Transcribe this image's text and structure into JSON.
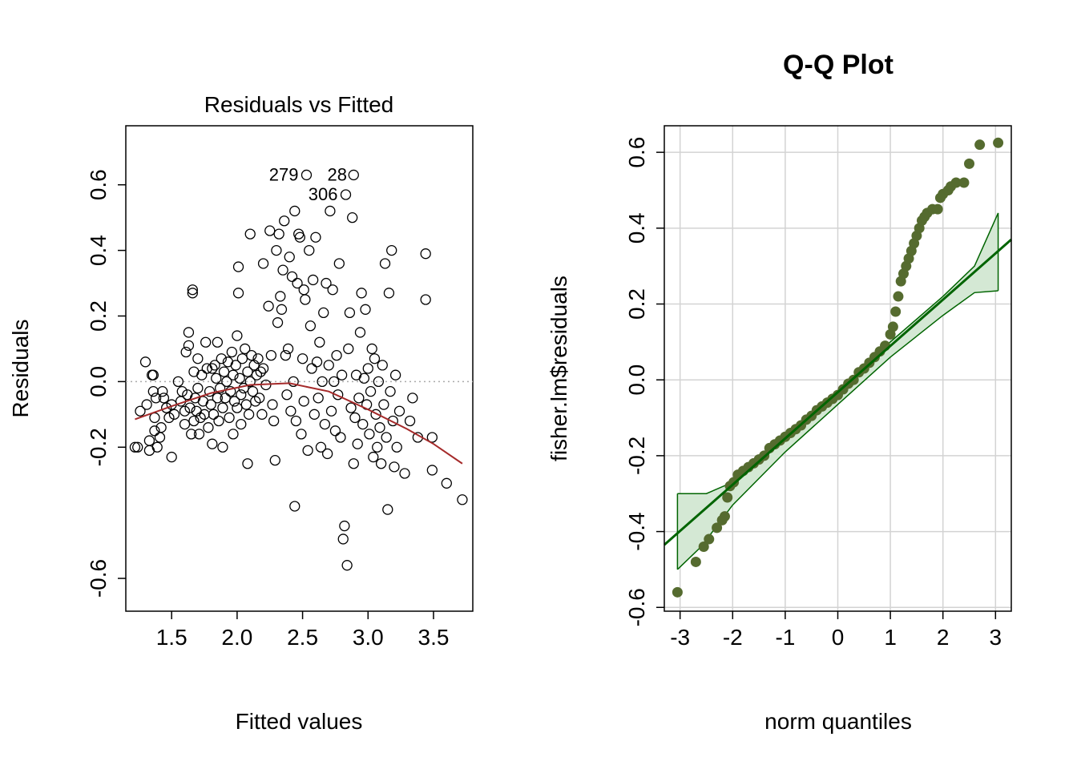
{
  "chart_data": [
    {
      "type": "scatter",
      "title": "Residuals vs Fitted",
      "xlabel": "Fitted values",
      "ylabel": "Residuals",
      "xlim": [
        1.15,
        3.8
      ],
      "ylim": [
        -0.7,
        0.78
      ],
      "xticks": [
        1.5,
        2.0,
        2.5,
        3.0,
        3.5
      ],
      "xtick_labels": [
        "1.5",
        "2.0",
        "2.5",
        "3.0",
        "3.5"
      ],
      "yticks": [
        -0.6,
        -0.2,
        0.0,
        0.2,
        0.4,
        0.6
      ],
      "ytick_labels": [
        "-0.6",
        "-0.2",
        "0.0",
        "0.2",
        "0.4",
        "0.6"
      ],
      "reference_line_y": 0.0,
      "point_labels": [
        {
          "text": "279",
          "x": 2.53,
          "y": 0.63
        },
        {
          "text": "28",
          "x": 2.9,
          "y": 0.63
        },
        {
          "text": "306",
          "x": 2.83,
          "y": 0.57
        }
      ],
      "smooth_color": "#a52a2a",
      "smooth_line": [
        [
          1.22,
          -0.115
        ],
        [
          1.5,
          -0.075
        ],
        [
          1.8,
          -0.035
        ],
        [
          2.1,
          -0.01
        ],
        [
          2.4,
          -0.005
        ],
        [
          2.7,
          -0.03
        ],
        [
          3.0,
          -0.085
        ],
        [
          3.3,
          -0.145
        ],
        [
          3.5,
          -0.19
        ],
        [
          3.72,
          -0.25
        ]
      ],
      "points": [
        [
          1.22,
          -0.2
        ],
        [
          1.24,
          -0.2
        ],
        [
          1.26,
          -0.09
        ],
        [
          1.3,
          0.06
        ],
        [
          1.31,
          -0.07
        ],
        [
          1.33,
          -0.18
        ],
        [
          1.33,
          -0.21
        ],
        [
          1.35,
          0.02
        ],
        [
          1.36,
          0.02
        ],
        [
          1.36,
          -0.03
        ],
        [
          1.37,
          -0.11
        ],
        [
          1.37,
          -0.15
        ],
        [
          1.38,
          -0.05
        ],
        [
          1.39,
          -0.2
        ],
        [
          1.41,
          -0.17
        ],
        [
          1.42,
          -0.14
        ],
        [
          1.43,
          -0.03
        ],
        [
          1.44,
          -0.05
        ],
        [
          1.46,
          -0.08
        ],
        [
          1.48,
          -0.11
        ],
        [
          1.5,
          -0.23
        ],
        [
          1.5,
          -0.07
        ],
        [
          1.52,
          -0.1
        ],
        [
          1.55,
          0.0
        ],
        [
          1.57,
          -0.06
        ],
        [
          1.58,
          -0.03
        ],
        [
          1.6,
          -0.09
        ],
        [
          1.6,
          -0.13
        ],
        [
          1.61,
          0.09
        ],
        [
          1.62,
          -0.04
        ],
        [
          1.63,
          0.15
        ],
        [
          1.63,
          0.11
        ],
        [
          1.64,
          -0.08
        ],
        [
          1.65,
          -0.16
        ],
        [
          1.66,
          0.28
        ],
        [
          1.66,
          0.27
        ],
        [
          1.67,
          0.03
        ],
        [
          1.67,
          -0.12
        ],
        [
          1.68,
          -0.05
        ],
        [
          1.69,
          -0.09
        ],
        [
          1.7,
          0.07
        ],
        [
          1.7,
          -0.02
        ],
        [
          1.71,
          -0.16
        ],
        [
          1.72,
          -0.11
        ],
        [
          1.73,
          0.02
        ],
        [
          1.74,
          -0.06
        ],
        [
          1.75,
          -0.1
        ],
        [
          1.76,
          0.12
        ],
        [
          1.77,
          0.04
        ],
        [
          1.78,
          -0.14
        ],
        [
          1.79,
          -0.03
        ],
        [
          1.8,
          -0.07
        ],
        [
          1.81,
          0.04
        ],
        [
          1.81,
          -0.19
        ],
        [
          1.82,
          -0.1
        ],
        [
          1.83,
          0.05
        ],
        [
          1.84,
          0.01
        ],
        [
          1.85,
          -0.05
        ],
        [
          1.85,
          0.12
        ],
        [
          1.86,
          -0.12
        ],
        [
          1.87,
          -0.02
        ],
        [
          1.88,
          0.07
        ],
        [
          1.89,
          -0.08
        ],
        [
          1.89,
          -0.2
        ],
        [
          1.9,
          0.03
        ],
        [
          1.91,
          -0.05
        ],
        [
          1.92,
          0.0
        ],
        [
          1.93,
          0.06
        ],
        [
          1.94,
          -0.11
        ],
        [
          1.95,
          -0.03
        ],
        [
          1.96,
          0.09
        ],
        [
          1.97,
          -0.16
        ],
        [
          1.97,
          0.02
        ],
        [
          1.98,
          -0.06
        ],
        [
          1.99,
          0.05
        ],
        [
          2.0,
          0.14
        ],
        [
          2.0,
          -0.08
        ],
        [
          2.01,
          0.35
        ],
        [
          2.01,
          0.27
        ],
        [
          2.02,
          0.01
        ],
        [
          2.03,
          -0.04
        ],
        [
          2.03,
          -0.13
        ],
        [
          2.04,
          0.07
        ],
        [
          2.05,
          -0.02
        ],
        [
          2.06,
          0.1
        ],
        [
          2.07,
          -0.07
        ],
        [
          2.08,
          -0.25
        ],
        [
          2.08,
          0.03
        ],
        [
          2.09,
          -0.1
        ],
        [
          2.1,
          0.0
        ],
        [
          2.1,
          0.45
        ],
        [
          2.11,
          0.08
        ],
        [
          2.12,
          -0.03
        ],
        [
          2.13,
          0.05
        ],
        [
          2.14,
          -0.06
        ],
        [
          2.15,
          0.02
        ],
        [
          2.16,
          0.07
        ],
        [
          2.17,
          -0.05
        ],
        [
          2.18,
          0.03
        ],
        [
          2.19,
          -0.1
        ],
        [
          2.2,
          0.04
        ],
        [
          2.2,
          0.36
        ],
        [
          2.22,
          -0.01
        ],
        [
          2.24,
          0.23
        ],
        [
          2.25,
          0.46
        ],
        [
          2.26,
          0.08
        ],
        [
          2.27,
          -0.07
        ],
        [
          2.28,
          -0.12
        ],
        [
          2.29,
          -0.24
        ],
        [
          2.3,
          0.4
        ],
        [
          2.31,
          0.18
        ],
        [
          2.32,
          0.45
        ],
        [
          2.33,
          0.26
        ],
        [
          2.34,
          0.22
        ],
        [
          2.35,
          0.34
        ],
        [
          2.36,
          0.49
        ],
        [
          2.37,
          0.08
        ],
        [
          2.38,
          -0.04
        ],
        [
          2.39,
          0.1
        ],
        [
          2.4,
          0.38
        ],
        [
          2.41,
          -0.09
        ],
        [
          2.42,
          0.32
        ],
        [
          2.43,
          0.0
        ],
        [
          2.44,
          -0.38
        ],
        [
          2.44,
          0.52
        ],
        [
          2.45,
          -0.12
        ],
        [
          2.46,
          0.3
        ],
        [
          2.47,
          0.45
        ],
        [
          2.48,
          0.44
        ],
        [
          2.49,
          -0.16
        ],
        [
          2.5,
          0.07
        ],
        [
          2.51,
          0.28
        ],
        [
          2.51,
          -0.06
        ],
        [
          2.52,
          0.25
        ],
        [
          2.53,
          0.63
        ],
        [
          2.54,
          -0.21
        ],
        [
          2.55,
          0.4
        ],
        [
          2.56,
          0.17
        ],
        [
          2.57,
          0.04
        ],
        [
          2.58,
          0.31
        ],
        [
          2.59,
          -0.1
        ],
        [
          2.6,
          0.44
        ],
        [
          2.61,
          0.06
        ],
        [
          2.62,
          -0.05
        ],
        [
          2.63,
          0.12
        ],
        [
          2.64,
          -0.2
        ],
        [
          2.65,
          0.0
        ],
        [
          2.66,
          0.21
        ],
        [
          2.67,
          -0.13
        ],
        [
          2.68,
          0.3
        ],
        [
          2.69,
          -0.22
        ],
        [
          2.7,
          0.05
        ],
        [
          2.71,
          0.52
        ],
        [
          2.72,
          -0.09
        ],
        [
          2.73,
          0.28
        ],
        [
          2.74,
          0.0
        ],
        [
          2.75,
          -0.15
        ],
        [
          2.76,
          0.08
        ],
        [
          2.77,
          -0.04
        ],
        [
          2.78,
          0.36
        ],
        [
          2.79,
          -0.17
        ],
        [
          2.8,
          0.02
        ],
        [
          2.81,
          -0.48
        ],
        [
          2.82,
          -0.44
        ],
        [
          2.83,
          0.57
        ],
        [
          2.84,
          -0.56
        ],
        [
          2.85,
          0.1
        ],
        [
          2.86,
          0.21
        ],
        [
          2.87,
          -0.08
        ],
        [
          2.88,
          0.5
        ],
        [
          2.89,
          0.63
        ],
        [
          2.89,
          -0.25
        ],
        [
          2.9,
          -0.11
        ],
        [
          2.91,
          0.02
        ],
        [
          2.92,
          -0.19
        ],
        [
          2.93,
          -0.05
        ],
        [
          2.94,
          0.15
        ],
        [
          2.95,
          0.27
        ],
        [
          2.96,
          -0.13
        ],
        [
          2.97,
          0.01
        ],
        [
          2.98,
          0.22
        ],
        [
          2.99,
          -0.07
        ],
        [
          3.0,
          0.04
        ],
        [
          3.01,
          -0.16
        ],
        [
          3.02,
          -0.03
        ],
        [
          3.03,
          0.1
        ],
        [
          3.04,
          -0.23
        ],
        [
          3.05,
          0.07
        ],
        [
          3.06,
          -0.1
        ],
        [
          3.07,
          -0.2
        ],
        [
          3.08,
          0.0
        ],
        [
          3.09,
          -0.14
        ],
        [
          3.1,
          -0.25
        ],
        [
          3.11,
          0.05
        ],
        [
          3.12,
          -0.07
        ],
        [
          3.13,
          0.36
        ],
        [
          3.14,
          -0.17
        ],
        [
          3.15,
          -0.39
        ],
        [
          3.16,
          0.27
        ],
        [
          3.17,
          -0.03
        ],
        [
          3.18,
          0.4
        ],
        [
          3.19,
          -0.12
        ],
        [
          3.2,
          -0.26
        ],
        [
          3.21,
          0.02
        ],
        [
          3.22,
          -0.2
        ],
        [
          3.24,
          -0.09
        ],
        [
          3.28,
          -0.28
        ],
        [
          3.32,
          -0.12
        ],
        [
          3.34,
          -0.05
        ],
        [
          3.38,
          -0.17
        ],
        [
          3.44,
          0.39
        ],
        [
          3.44,
          0.25
        ],
        [
          3.49,
          -0.17
        ],
        [
          3.49,
          -0.27
        ],
        [
          3.6,
          -0.31
        ],
        [
          3.72,
          -0.36
        ]
      ]
    },
    {
      "type": "scatter",
      "title": "Q-Q Plot",
      "xlabel": "norm quantiles",
      "ylabel": "fisher.lm$residuals",
      "xlim": [
        -3.3,
        3.3
      ],
      "ylim": [
        -0.61,
        0.67
      ],
      "xticks": [
        -3,
        -2,
        -1,
        0,
        1,
        2,
        3
      ],
      "xtick_labels": [
        "-3",
        "-2",
        "-1",
        "0",
        "1",
        "2",
        "3"
      ],
      "yticks": [
        -0.6,
        -0.4,
        -0.2,
        0.0,
        0.2,
        0.4,
        0.6
      ],
      "ytick_labels": [
        "-0.6",
        "-0.4",
        "-0.2",
        "0.0",
        "0.2",
        "0.4",
        "0.6"
      ],
      "grid": true,
      "point_color": "#556b2f",
      "line_color": "#006400",
      "envelope_fill": "#d4e8d4",
      "reference_line": [
        [
          -3.3,
          -0.435
        ],
        [
          3.3,
          0.37
        ]
      ],
      "envelope_upper": [
        [
          -3.05,
          -0.3
        ],
        [
          -2.5,
          -0.3
        ],
        [
          -2.0,
          -0.27
        ],
        [
          -1.0,
          -0.15
        ],
        [
          0.0,
          -0.035
        ],
        [
          1.0,
          0.1
        ],
        [
          2.0,
          0.22
        ],
        [
          2.6,
          0.3
        ],
        [
          3.05,
          0.44
        ]
      ],
      "envelope_lower": [
        [
          -3.05,
          -0.5
        ],
        [
          -2.6,
          -0.44
        ],
        [
          -2.0,
          -0.33
        ],
        [
          -1.0,
          -0.19
        ],
        [
          0.0,
          -0.065
        ],
        [
          1.0,
          0.06
        ],
        [
          2.0,
          0.17
        ],
        [
          2.6,
          0.23
        ],
        [
          3.05,
          0.235
        ]
      ],
      "points": [
        [
          -3.05,
          -0.56
        ],
        [
          -2.7,
          -0.48
        ],
        [
          -2.55,
          -0.44
        ],
        [
          -2.45,
          -0.42
        ],
        [
          -2.3,
          -0.39
        ],
        [
          -2.2,
          -0.37
        ],
        [
          -2.15,
          -0.36
        ],
        [
          -2.1,
          -0.31
        ],
        [
          -2.05,
          -0.28
        ],
        [
          -1.98,
          -0.27
        ],
        [
          -1.9,
          -0.25
        ],
        [
          -1.8,
          -0.24
        ],
        [
          -1.7,
          -0.23
        ],
        [
          -1.6,
          -0.22
        ],
        [
          -1.5,
          -0.21
        ],
        [
          -1.4,
          -0.2
        ],
        [
          -1.3,
          -0.18
        ],
        [
          -1.2,
          -0.17
        ],
        [
          -1.1,
          -0.16
        ],
        [
          -1.0,
          -0.15
        ],
        [
          -0.9,
          -0.14
        ],
        [
          -0.8,
          -0.13
        ],
        [
          -0.7,
          -0.12
        ],
        [
          -0.6,
          -0.105
        ],
        [
          -0.5,
          -0.095
        ],
        [
          -0.4,
          -0.08
        ],
        [
          -0.3,
          -0.07
        ],
        [
          -0.2,
          -0.06
        ],
        [
          -0.1,
          -0.05
        ],
        [
          0.0,
          -0.04
        ],
        [
          0.1,
          -0.025
        ],
        [
          0.2,
          -0.01
        ],
        [
          0.3,
          0.0
        ],
        [
          0.4,
          0.02
        ],
        [
          0.5,
          0.03
        ],
        [
          0.6,
          0.045
        ],
        [
          0.7,
          0.06
        ],
        [
          0.8,
          0.075
        ],
        [
          0.9,
          0.09
        ],
        [
          1.0,
          0.12
        ],
        [
          1.05,
          0.14
        ],
        [
          1.1,
          0.18
        ],
        [
          1.15,
          0.22
        ],
        [
          1.2,
          0.26
        ],
        [
          1.25,
          0.28
        ],
        [
          1.3,
          0.3
        ],
        [
          1.35,
          0.32
        ],
        [
          1.4,
          0.34
        ],
        [
          1.45,
          0.36
        ],
        [
          1.5,
          0.38
        ],
        [
          1.55,
          0.4
        ],
        [
          1.6,
          0.42
        ],
        [
          1.65,
          0.43
        ],
        [
          1.7,
          0.44
        ],
        [
          1.8,
          0.45
        ],
        [
          1.9,
          0.45
        ],
        [
          1.95,
          0.48
        ],
        [
          2.0,
          0.49
        ],
        [
          2.1,
          0.5
        ],
        [
          2.15,
          0.51
        ],
        [
          2.25,
          0.52
        ],
        [
          2.4,
          0.52
        ],
        [
          2.5,
          0.57
        ],
        [
          2.7,
          0.62
        ],
        [
          3.05,
          0.625
        ]
      ]
    }
  ]
}
